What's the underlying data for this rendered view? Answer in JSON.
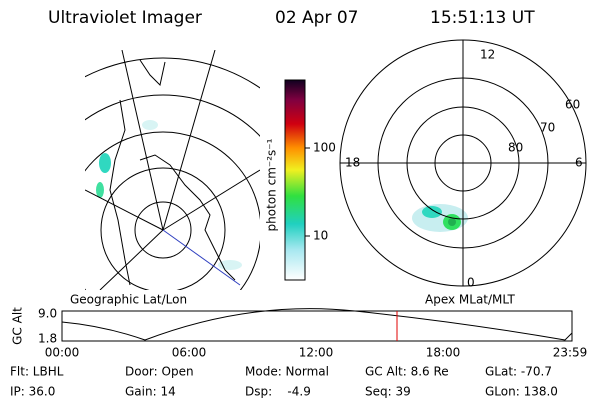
{
  "header": {
    "instrument": "Ultraviolet Imager",
    "date": "02 Apr 07",
    "time": "15:51:13 UT"
  },
  "colorbar": {
    "label": "photon cm⁻²s⁻¹",
    "ticks": [
      "100",
      "10"
    ]
  },
  "polar": {
    "mlt_labels": [
      "12",
      "18",
      "6",
      "0"
    ],
    "lat_labels": [
      "60",
      "70",
      "80"
    ]
  },
  "panels": {
    "left": "Geographic Lat/Lon",
    "right": "Apex MLat/MLT"
  },
  "orbit": {
    "ylabel": "GC Alt",
    "yticks": [
      "9.0",
      "1.8"
    ],
    "xticks": [
      "00:00",
      "06:00",
      "12:00",
      "18:00",
      "23:59"
    ]
  },
  "footer": {
    "rows": [
      [
        "Flt: LBHL",
        "Door: Open",
        "Mode: Normal",
        "GC Alt: 8.6 Re",
        "GLat: -70.7"
      ],
      [
        "IP: 36.0",
        "Gain: 14",
        "Dsp:    -4.9",
        "Seq: 39",
        "GLon: 138.0"
      ]
    ]
  }
}
